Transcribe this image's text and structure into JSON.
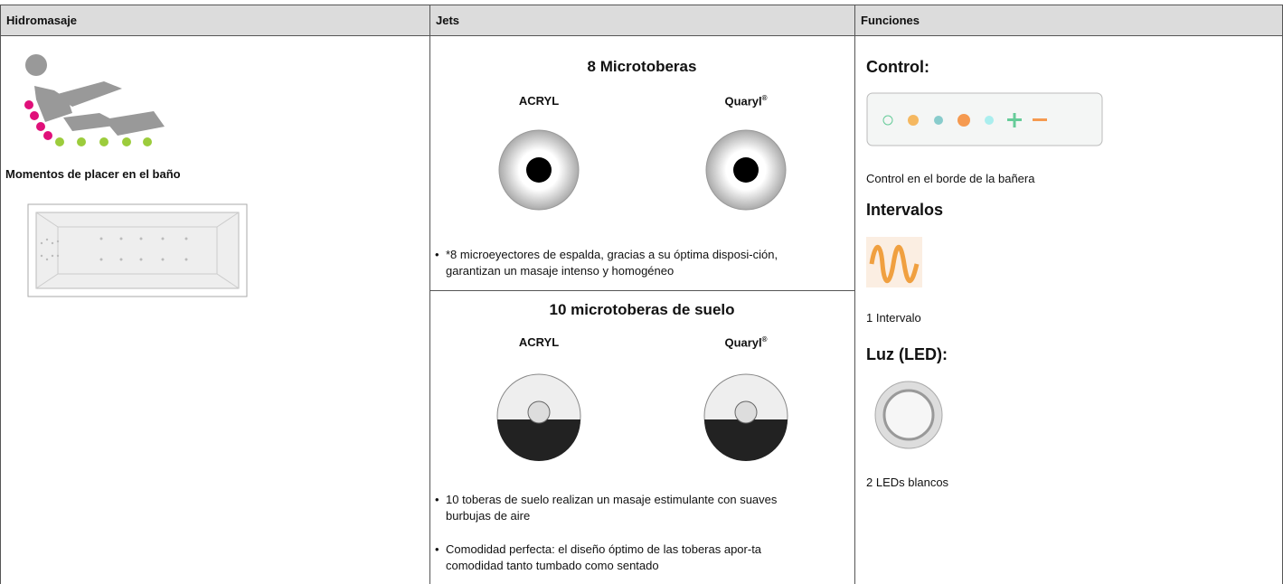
{
  "table": {
    "headers": [
      "Hidromasaje",
      "Jets",
      "Funciones"
    ],
    "hidromasaje": {
      "caption": "Momentos de placer en el baño"
    },
    "jets": [
      {
        "title": "8 Microtoberas",
        "labels": [
          "ACRYL",
          "Quaryl"
        ],
        "mark": "®",
        "bullets": [
          "*8 microeyectores de espalda, gracias a su óptima disposi-ción, garantizan un masaje intenso y homogéneo"
        ]
      },
      {
        "title": "10 microtoberas de suelo",
        "labels": [
          "ACRYL",
          "Quaryl"
        ],
        "mark": "®",
        "bullets": [
          "10 toberas de suelo realizan un masaje estimulante con suaves burbujas de aire",
          "Comodidad perfecta: el diseño óptimo de las toberas apor-ta comodidad tanto tumbado como sentado"
        ]
      }
    ],
    "funciones": [
      {
        "heading": "Control:",
        "text": "Control en el borde de la bañera"
      },
      {
        "heading": "Intervalos",
        "text": "1 Intervalo"
      },
      {
        "heading": "Luz (LED):",
        "text": "2 LEDs blancos"
      }
    ]
  }
}
